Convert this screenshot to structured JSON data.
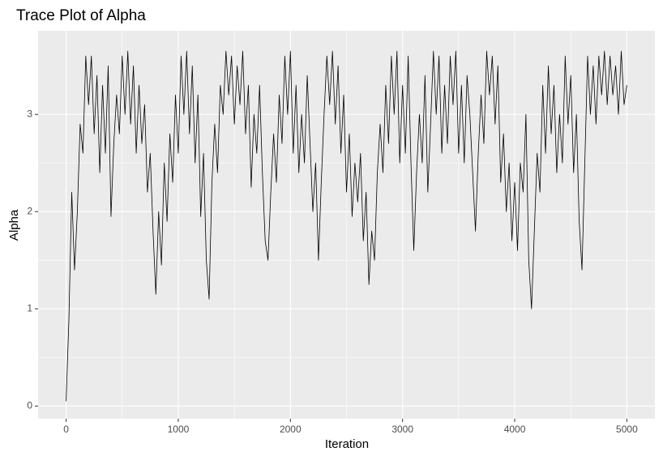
{
  "chart_data": {
    "type": "line",
    "title": "Trace Plot of Alpha",
    "x_label": "Iteration",
    "y_label": "Alpha",
    "x": [
      0,
      25,
      50,
      75,
      100,
      125,
      150,
      175,
      200,
      225,
      250,
      275,
      300,
      325,
      350,
      375,
      400,
      425,
      450,
      475,
      500,
      525,
      550,
      575,
      600,
      625,
      650,
      675,
      700,
      725,
      750,
      775,
      800,
      825,
      850,
      875,
      900,
      925,
      950,
      975,
      1000,
      1025,
      1050,
      1075,
      1100,
      1125,
      1150,
      1175,
      1200,
      1225,
      1250,
      1275,
      1300,
      1325,
      1350,
      1375,
      1400,
      1425,
      1450,
      1475,
      1500,
      1525,
      1550,
      1575,
      1600,
      1625,
      1650,
      1675,
      1700,
      1725,
      1750,
      1775,
      1800,
      1825,
      1850,
      1875,
      1900,
      1925,
      1950,
      1975,
      2000,
      2025,
      2050,
      2075,
      2100,
      2125,
      2150,
      2175,
      2200,
      2225,
      2250,
      2275,
      2300,
      2325,
      2350,
      2375,
      2400,
      2425,
      2450,
      2475,
      2500,
      2525,
      2550,
      2575,
      2600,
      2625,
      2650,
      2675,
      2700,
      2725,
      2750,
      2775,
      2800,
      2825,
      2850,
      2875,
      2900,
      2925,
      2950,
      2975,
      3000,
      3025,
      3050,
      3075,
      3100,
      3125,
      3150,
      3175,
      3200,
      3225,
      3250,
      3275,
      3300,
      3325,
      3350,
      3375,
      3400,
      3425,
      3450,
      3475,
      3500,
      3525,
      3550,
      3575,
      3600,
      3625,
      3650,
      3675,
      3700,
      3725,
      3750,
      3775,
      3800,
      3825,
      3850,
      3875,
      3900,
      3925,
      3950,
      3975,
      4000,
      4025,
      4050,
      4075,
      4100,
      4125,
      4150,
      4175,
      4200,
      4225,
      4250,
      4275,
      4300,
      4325,
      4350,
      4375,
      4400,
      4425,
      4450,
      4475,
      4500,
      4525,
      4550,
      4575,
      4600,
      4625,
      4650,
      4675,
      4700,
      4725,
      4750,
      4775,
      4800,
      4825,
      4850,
      4875,
      4900,
      4925,
      4950,
      4975,
      5000
    ],
    "series": [
      {
        "name": "Alpha",
        "color": "#000000",
        "values": [
          0.05,
          0.9,
          2.2,
          1.4,
          2.0,
          2.9,
          2.6,
          3.6,
          3.1,
          3.6,
          2.8,
          3.4,
          2.4,
          3.3,
          2.6,
          3.5,
          1.95,
          2.7,
          3.2,
          2.8,
          3.6,
          3.0,
          3.65,
          2.9,
          3.5,
          2.6,
          3.3,
          2.7,
          3.1,
          2.2,
          2.6,
          1.8,
          1.15,
          2.0,
          1.45,
          2.5,
          1.9,
          2.8,
          2.3,
          3.2,
          2.6,
          3.6,
          3.0,
          3.65,
          2.8,
          3.5,
          2.5,
          3.2,
          1.95,
          2.6,
          1.5,
          1.1,
          2.3,
          2.9,
          2.4,
          3.3,
          3.0,
          3.65,
          3.2,
          3.6,
          2.9,
          3.5,
          3.1,
          3.65,
          2.8,
          3.3,
          2.25,
          3.0,
          2.6,
          3.3,
          2.4,
          1.7,
          1.5,
          2.2,
          2.8,
          2.3,
          3.2,
          2.7,
          3.6,
          3.0,
          3.65,
          2.6,
          3.3,
          2.4,
          3.0,
          2.5,
          3.4,
          2.7,
          2.0,
          2.5,
          1.5,
          2.3,
          3.0,
          3.6,
          3.1,
          3.65,
          2.9,
          3.5,
          2.6,
          3.2,
          2.2,
          2.8,
          1.95,
          2.5,
          2.1,
          2.6,
          1.7,
          2.2,
          1.25,
          1.8,
          1.5,
          2.4,
          2.9,
          2.4,
          3.3,
          2.7,
          3.6,
          3.0,
          3.65,
          2.5,
          3.3,
          2.6,
          3.6,
          2.5,
          1.6,
          2.4,
          3.0,
          2.5,
          3.4,
          2.2,
          2.9,
          3.65,
          3.0,
          3.6,
          2.6,
          3.3,
          2.7,
          3.6,
          3.1,
          3.65,
          2.6,
          3.3,
          2.5,
          3.4,
          3.0,
          2.4,
          1.8,
          2.6,
          3.2,
          2.7,
          3.65,
          3.2,
          3.6,
          2.9,
          3.5,
          2.3,
          2.8,
          2.0,
          2.5,
          1.7,
          2.3,
          1.6,
          2.5,
          2.2,
          3.0,
          1.5,
          1.0,
          1.8,
          2.6,
          2.2,
          3.3,
          2.6,
          3.5,
          2.8,
          3.3,
          2.4,
          3.0,
          2.5,
          3.6,
          2.9,
          3.4,
          2.4,
          3.0,
          1.9,
          1.4,
          2.5,
          3.6,
          3.0,
          3.5,
          2.9,
          3.6,
          3.2,
          3.65,
          3.1,
          3.6,
          3.2,
          3.5,
          3.0,
          3.65,
          3.1,
          3.3
        ]
      }
    ],
    "xlim": [
      -250,
      5250
    ],
    "ylim": [
      -0.13,
      3.86
    ],
    "xticks": [
      0,
      1000,
      2000,
      3000,
      4000,
      5000
    ],
    "yticks": [
      0,
      1,
      2,
      3
    ],
    "grid": true
  }
}
